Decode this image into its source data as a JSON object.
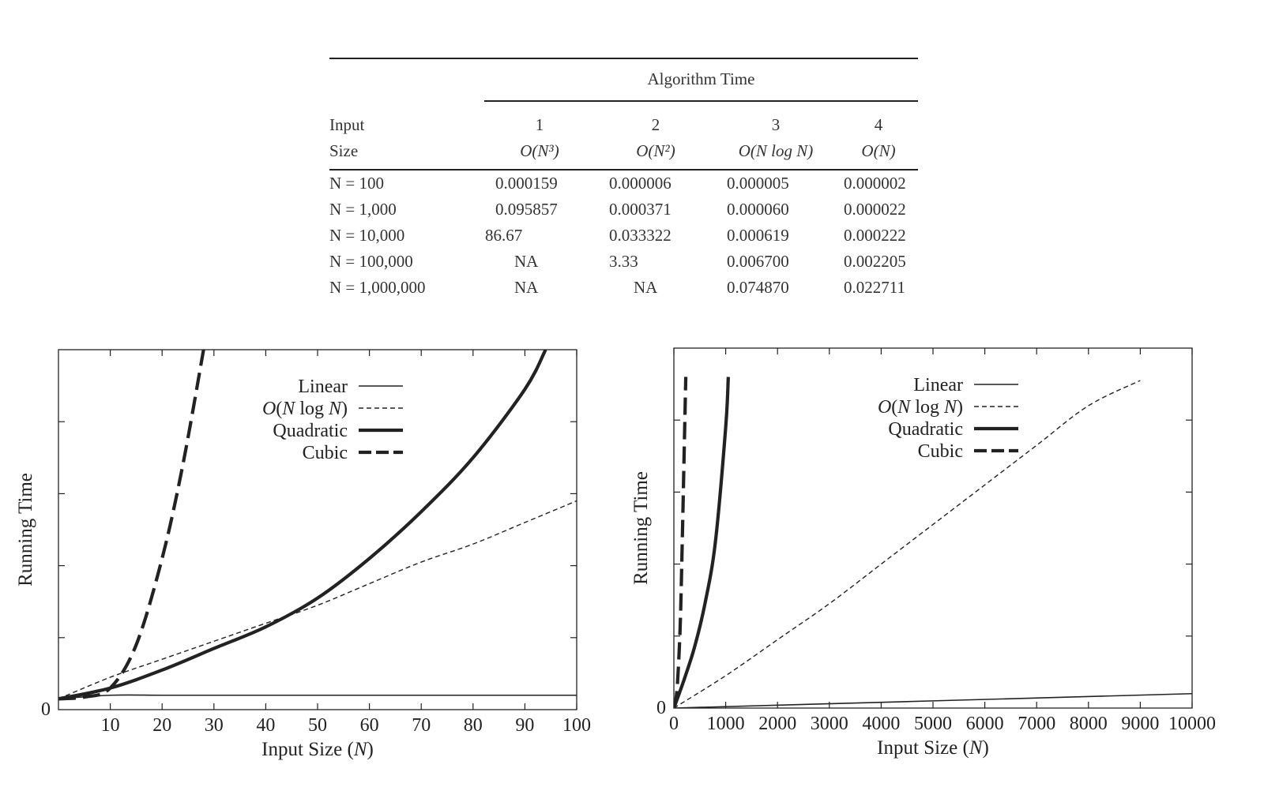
{
  "table": {
    "group_header": "Algorithm Time",
    "input_label_1": "Input",
    "input_label_2": "Size",
    "algorithms": [
      {
        "num": "1",
        "complexity": "O(N³)"
      },
      {
        "num": "2",
        "complexity": "O(N²)"
      },
      {
        "num": "3",
        "complexity": "O(N log N)"
      },
      {
        "num": "4",
        "complexity": "O(N)"
      }
    ],
    "rows": [
      {
        "n": "N = 100",
        "values": [
          "0.000159",
          "0.000006",
          "0.000005",
          "0.000002"
        ]
      },
      {
        "n": "N = 1,000",
        "values": [
          "0.095857",
          "0.000371",
          "0.000060",
          "0.000022"
        ]
      },
      {
        "n": "N = 10,000",
        "values": [
          "86.67",
          "0.033322",
          "0.000619",
          "0.000222"
        ]
      },
      {
        "n": "N = 100,000",
        "values": [
          "NA",
          "3.33",
          "0.006700",
          "0.002205"
        ]
      },
      {
        "n": "N = 1,000,000",
        "values": [
          "NA",
          "NA",
          "0.074870",
          "0.022711"
        ]
      }
    ]
  },
  "chart_data": [
    {
      "type": "line",
      "xlabel": "Input Size (N)",
      "ylabel": "Running Time",
      "xlim": [
        0,
        100
      ],
      "xticks": [
        "10",
        "20",
        "30",
        "40",
        "50",
        "60",
        "70",
        "80",
        "90",
        "100"
      ],
      "y_origin_label": "0",
      "legend_position": "top-center",
      "series": [
        {
          "name": "Linear",
          "style": "thin-solid",
          "x": [
            0,
            10,
            20,
            30,
            40,
            50,
            60,
            70,
            80,
            90,
            100
          ],
          "y": [
            0.03,
            0.04,
            0.04,
            0.04,
            0.04,
            0.04,
            0.04,
            0.04,
            0.04,
            0.04,
            0.04
          ]
        },
        {
          "name": "O(N log N)",
          "style": "dashed-thin",
          "x": [
            0,
            10,
            20,
            30,
            40,
            50,
            60,
            70,
            80,
            90,
            100
          ],
          "y": [
            0.03,
            0.09,
            0.14,
            0.19,
            0.24,
            0.29,
            0.35,
            0.41,
            0.46,
            0.52,
            0.58
          ]
        },
        {
          "name": "Quadratic",
          "style": "thick-solid",
          "x": [
            0,
            10,
            20,
            30,
            40,
            50,
            60,
            70,
            80,
            90,
            94
          ],
          "y": [
            0.03,
            0.06,
            0.11,
            0.17,
            0.23,
            0.31,
            0.42,
            0.55,
            0.7,
            0.89,
            1.0
          ]
        },
        {
          "name": "Cubic",
          "style": "long-dash",
          "x": [
            0,
            5,
            10,
            15,
            20,
            24,
            28
          ],
          "y": [
            0.03,
            0.035,
            0.06,
            0.18,
            0.42,
            0.68,
            1.0
          ]
        }
      ]
    },
    {
      "type": "line",
      "xlabel": "Input Size (N)",
      "ylabel": "Running Time",
      "xlim": [
        0,
        10000
      ],
      "xticks": [
        "0",
        "1000",
        "2000",
        "3000",
        "4000",
        "5000",
        "6000",
        "7000",
        "8000",
        "9000",
        "10000"
      ],
      "y_origin_label": "0",
      "legend_position": "top-center",
      "series": [
        {
          "name": "Linear",
          "style": "thin-solid",
          "x": [
            0,
            10000
          ],
          "y": [
            0.0,
            0.04
          ]
        },
        {
          "name": "O(N log N)",
          "style": "dashed-thin",
          "x": [
            0,
            1000,
            2000,
            3000,
            4000,
            5000,
            6000,
            7000,
            8000,
            9000
          ],
          "y": [
            0.0,
            0.09,
            0.19,
            0.29,
            0.4,
            0.51,
            0.62,
            0.73,
            0.84,
            0.91
          ]
        },
        {
          "name": "Quadratic",
          "style": "thick-solid",
          "x": [
            0,
            200,
            400,
            600,
            800,
            1000,
            1050
          ],
          "y": [
            0.0,
            0.08,
            0.17,
            0.29,
            0.46,
            0.78,
            0.92
          ]
        },
        {
          "name": "Cubic",
          "style": "long-dash",
          "x": [
            0,
            60,
            120,
            160,
            200,
            230
          ],
          "y": [
            0.0,
            0.05,
            0.22,
            0.45,
            0.72,
            0.92
          ]
        }
      ]
    }
  ]
}
